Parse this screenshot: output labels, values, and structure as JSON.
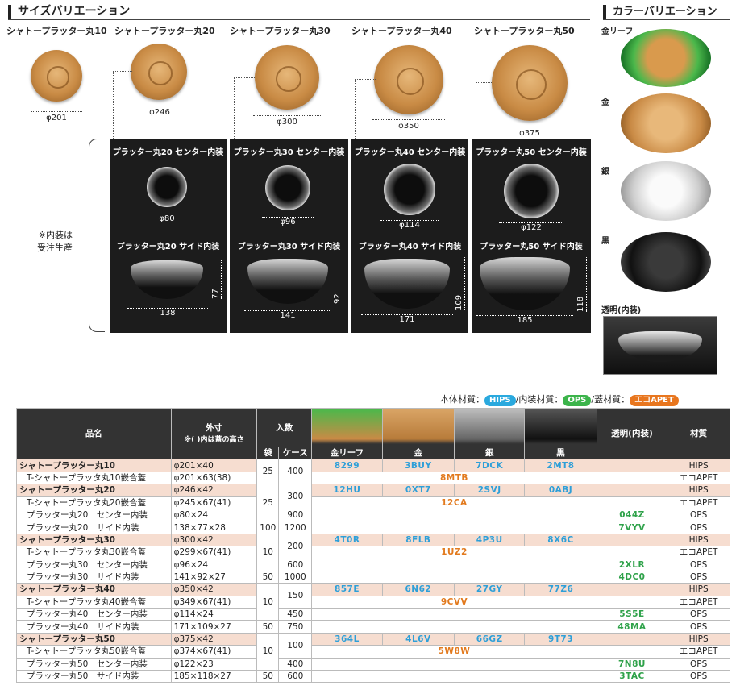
{
  "size_section": {
    "title": "サイズバリエーション",
    "products": [
      {
        "name": "シャトープラッター丸10",
        "diameter": "φ201"
      },
      {
        "name": "シャトープラッター丸20",
        "diameter": "φ246"
      },
      {
        "name": "シャトープラッター丸30",
        "diameter": "φ300"
      },
      {
        "name": "シャトープラッター丸40",
        "diameter": "φ350"
      },
      {
        "name": "シャトープラッター丸50",
        "diameter": "φ375"
      }
    ],
    "note": "※内装は\n受注生産",
    "inner_panels": [
      {
        "center_title": "プラッター丸20 センター内装",
        "center_dim": "φ80",
        "side_title": "プラッター丸20 サイド内装",
        "side_w": "138",
        "side_h": "77"
      },
      {
        "center_title": "プラッター丸30 センター内装",
        "center_dim": "φ96",
        "side_title": "プラッター丸30 サイド内装",
        "side_w": "141",
        "side_h": "92"
      },
      {
        "center_title": "プラッター丸40 センター内装",
        "center_dim": "φ114",
        "side_title": "プラッター丸40 サイド内装",
        "side_w": "171",
        "side_h": "109"
      },
      {
        "center_title": "プラッター丸50 センター内装",
        "center_dim": "φ122",
        "side_title": "プラッター丸50 サイド内装",
        "side_w": "185",
        "side_h": "118"
      }
    ]
  },
  "color_section": {
    "title": "カラーバリエーション",
    "colors": [
      "金リーフ",
      "金",
      "銀",
      "黒",
      "透明(内装)"
    ]
  },
  "materials": {
    "body_label": "本体材質：",
    "body": "HIPS",
    "inner_label": "/内装材質：",
    "inner": "OPS",
    "lid_label": "/蓋材質：",
    "lid": "エコAPET",
    "colors": {
      "body": "#2aa9de",
      "inner": "#3cb44b",
      "lid": "#e8761e"
    }
  },
  "table": {
    "headers": {
      "name": "品名",
      "outer": "外寸",
      "outer_note": "※( )内は蓋の高さ",
      "qty": "入数",
      "bag": "袋",
      "case": "ケース",
      "gold_leaf": "金リーフ",
      "gold": "金",
      "silver": "銀",
      "black": "黒",
      "clear": "透明(内装)",
      "material": "材質"
    },
    "rows": [
      {
        "name": "シャトープラッター丸10",
        "dim": "φ201×40",
        "bag": "25",
        "case": "400",
        "gl": "8299",
        "g": "3BUY",
        "s": "7DCK",
        "b": "2MT8",
        "clear": "",
        "mat": "HIPS",
        "group": true
      },
      {
        "name": "T-シャトープラッタ丸10嵌合蓋",
        "dim": "φ201×63(38)",
        "lid": "8MTB",
        "mat": "エコAPET"
      },
      {
        "name": "シャトープラッター丸20",
        "dim": "φ246×42",
        "case": "300",
        "gl": "12HU",
        "g": "0XT7",
        "s": "2SVJ",
        "b": "0ABJ",
        "mat": "HIPS",
        "group": true
      },
      {
        "name": "T-シャトープラッタ丸20嵌合蓋",
        "dim": "φ245×67(41)",
        "bag": "25",
        "lid": "12CA",
        "mat": "エコAPET"
      },
      {
        "name": "プラッター丸20　センター内装",
        "dim": "φ80×24",
        "case": "900",
        "clear": "044Z",
        "mat": "OPS"
      },
      {
        "name": "プラッター丸20　サイド内装",
        "dim": "138×77×28",
        "bag": "100",
        "case": "1200",
        "clear": "7VYV",
        "mat": "OPS"
      },
      {
        "name": "シャトープラッター丸30",
        "dim": "φ300×42",
        "case": "200",
        "gl": "4T0R",
        "g": "8FLB",
        "s": "4P3U",
        "b": "8X6C",
        "mat": "HIPS",
        "group": true
      },
      {
        "name": "T-シャトープラッタ丸30嵌合蓋",
        "dim": "φ299×67(41)",
        "bag": "10",
        "lid": "1UZ2",
        "mat": "エコAPET"
      },
      {
        "name": "プラッター丸30　センター内装",
        "dim": "φ96×24",
        "case": "600",
        "clear": "2XLR",
        "mat": "OPS"
      },
      {
        "name": "プラッター丸30　サイド内装",
        "dim": "141×92×27",
        "bag": "50",
        "case": "1000",
        "clear": "4DC0",
        "mat": "OPS"
      },
      {
        "name": "シャトープラッター丸40",
        "dim": "φ350×42",
        "case": "150",
        "gl": "857E",
        "g": "6N62",
        "s": "27GY",
        "b": "77Z6",
        "mat": "HIPS",
        "group": true
      },
      {
        "name": "T-シャトープラッタ丸40嵌合蓋",
        "dim": "φ349×67(41)",
        "bag": "10",
        "lid": "9CVV",
        "mat": "エコAPET"
      },
      {
        "name": "プラッター丸40　センター内装",
        "dim": "φ114×24",
        "case": "450",
        "clear": "5S5E",
        "mat": "OPS"
      },
      {
        "name": "プラッター丸40　サイド内装",
        "dim": "171×109×27",
        "bag": "50",
        "case": "750",
        "clear": "48MA",
        "mat": "OPS"
      },
      {
        "name": "シャトープラッター丸50",
        "dim": "φ375×42",
        "case": "100",
        "gl": "364L",
        "g": "4L6V",
        "s": "66GZ",
        "b": "9T73",
        "mat": "HIPS",
        "group": true
      },
      {
        "name": "T-シャトープラッタ丸50嵌合蓋",
        "dim": "φ374×67(41)",
        "bag": "10",
        "lid": "5W8W",
        "mat": "エコAPET"
      },
      {
        "name": "プラッター丸50　センター内装",
        "dim": "φ122×23",
        "case": "400",
        "clear": "7N8U",
        "mat": "OPS"
      },
      {
        "name": "プラッター丸50　サイド内装",
        "dim": "185×118×27",
        "bag": "50",
        "case": "600",
        "clear": "3TAC",
        "mat": "OPS"
      }
    ]
  }
}
